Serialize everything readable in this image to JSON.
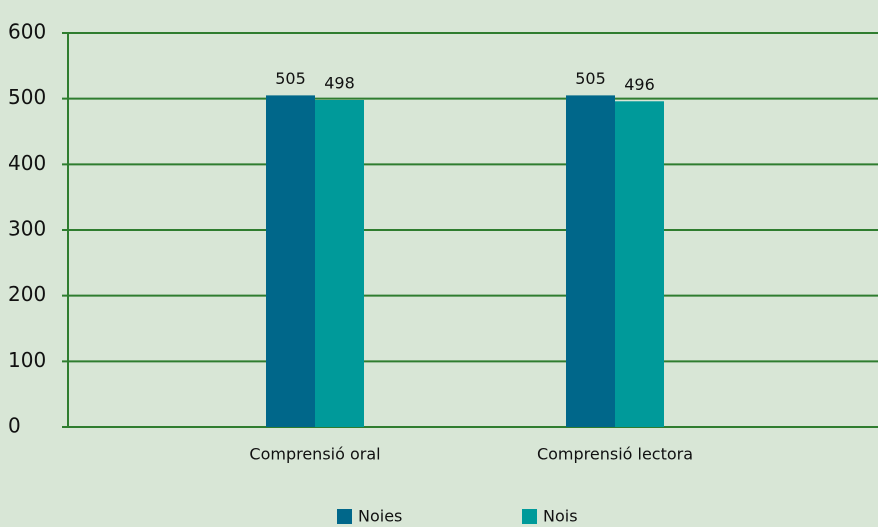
{
  "chart_data": {
    "type": "bar",
    "categories": [
      "Comprensió oral",
      "Comprensió lectora"
    ],
    "series": [
      {
        "name": "Noies",
        "color": "#00678a",
        "values": [
          505,
          505
        ]
      },
      {
        "name": "Nois",
        "color": "#009a9a",
        "values": [
          498,
          496
        ]
      }
    ],
    "ylim": [
      0,
      600
    ],
    "yticks": [
      0,
      100,
      200,
      300,
      400,
      500,
      600
    ],
    "grid": true,
    "legend": "bottom"
  }
}
